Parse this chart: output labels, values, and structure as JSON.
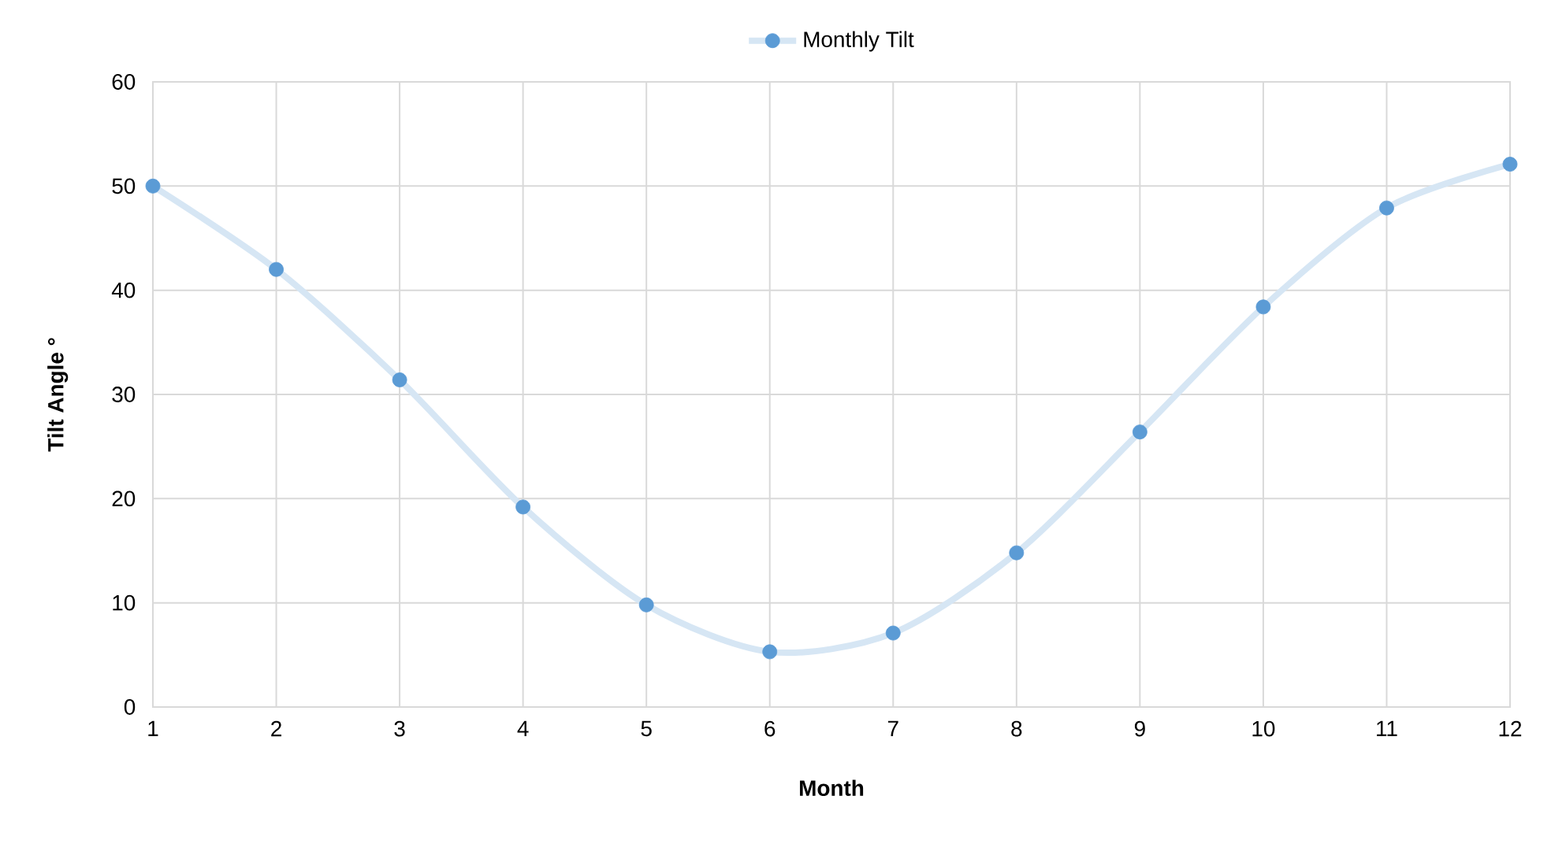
{
  "chart_data": {
    "type": "line",
    "xlabel": "Month",
    "ylabel": "Tilt Angle °",
    "x": [
      1,
      2,
      3,
      4,
      5,
      6,
      7,
      8,
      9,
      10,
      11,
      12
    ],
    "series": [
      {
        "name": "Monthly Tilt",
        "color": "#5b9bd5",
        "values": [
          50.0,
          42.0,
          31.4,
          19.2,
          9.8,
          5.3,
          7.1,
          14.8,
          26.4,
          38.4,
          47.9,
          52.1
        ]
      }
    ],
    "xlim": [
      1,
      12
    ],
    "xticks": [
      1,
      2,
      3,
      4,
      5,
      6,
      7,
      8,
      9,
      10,
      11,
      12
    ],
    "ylim": [
      0,
      60
    ],
    "yticks": [
      0,
      10,
      20,
      30,
      40,
      50,
      60
    ],
    "grid": true,
    "legend": "top",
    "marker": "circle"
  }
}
